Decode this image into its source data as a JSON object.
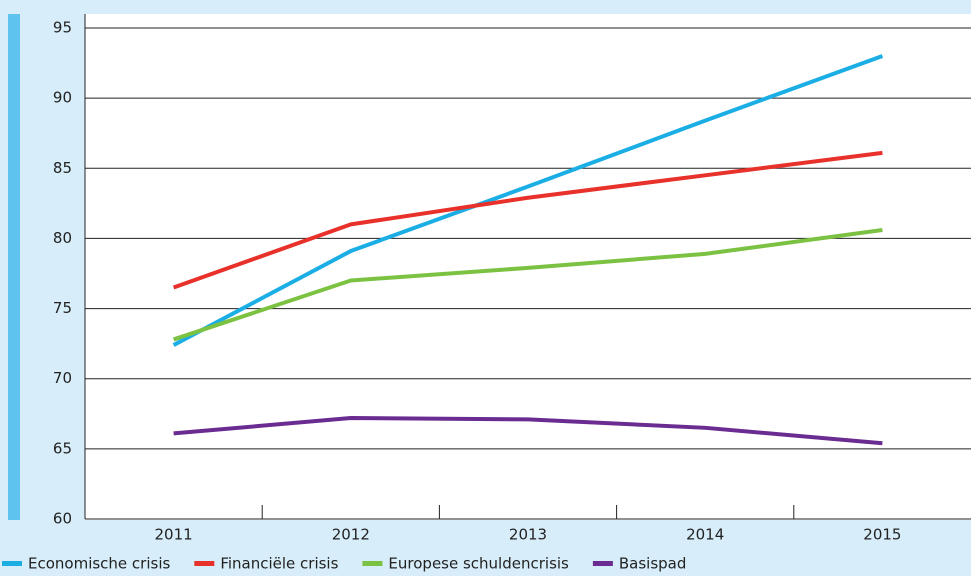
{
  "chart_data": {
    "type": "line",
    "categories": [
      "2011",
      "2012",
      "2013",
      "2014",
      "2015"
    ],
    "series": [
      {
        "name": "Economische crisis",
        "color": "#1aaee5",
        "values": [
          72.4,
          79.1,
          83.7,
          88.4,
          93.0
        ]
      },
      {
        "name": "Financiële crisis",
        "color": "#e8312a",
        "values": [
          76.5,
          81.0,
          82.9,
          84.5,
          86.1
        ]
      },
      {
        "name": "Europese schuldencrisis",
        "color": "#7cc242",
        "values": [
          72.8,
          77.0,
          77.9,
          78.9,
          80.6
        ]
      },
      {
        "name": "Basispad",
        "color": "#6b2c91",
        "values": [
          66.1,
          67.2,
          67.1,
          66.5,
          65.4
        ]
      }
    ],
    "ylim": [
      60,
      95
    ],
    "yticks": [
      60,
      65,
      70,
      75,
      80,
      85,
      90,
      95
    ],
    "grid": true,
    "legend": "bottom"
  }
}
